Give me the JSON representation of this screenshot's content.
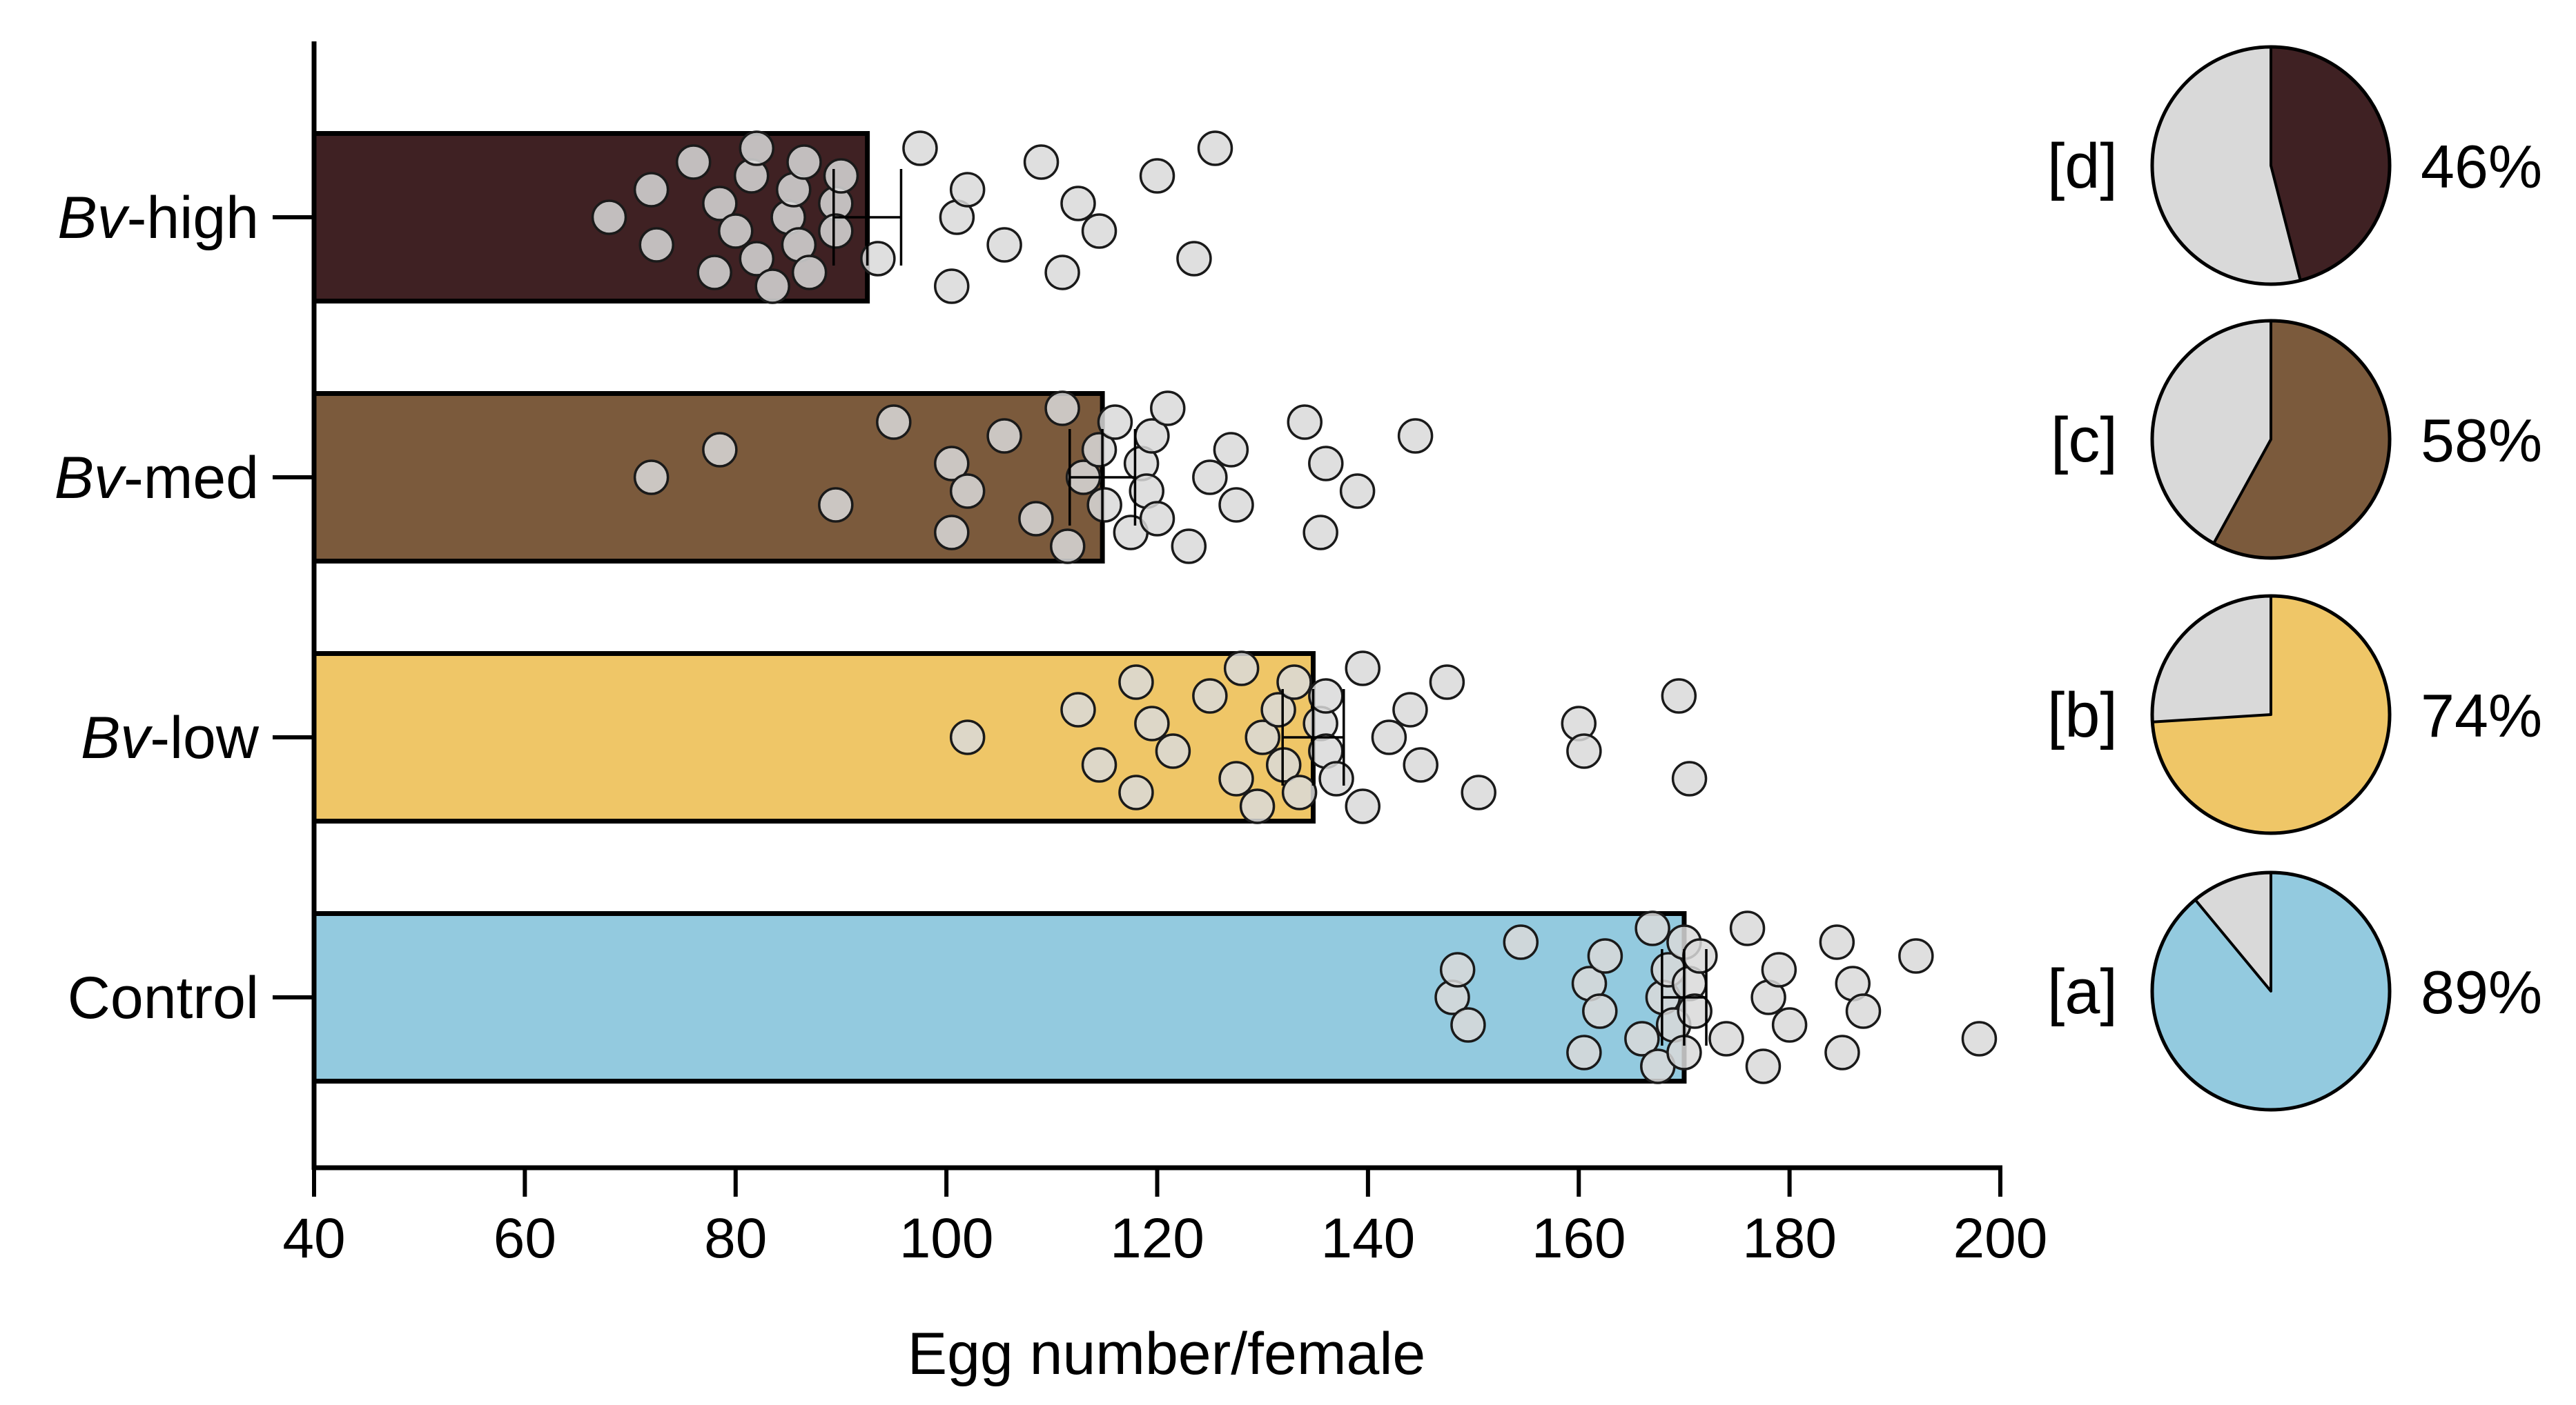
{
  "chart_data": {
    "type": "bar",
    "orientation": "horizontal",
    "xlabel": "Egg number/female",
    "xlim": [
      40,
      200
    ],
    "xticks": [
      40,
      60,
      80,
      100,
      120,
      140,
      160,
      180,
      200
    ],
    "categories": [
      {
        "prefix": "Bv",
        "suffix": "-high",
        "italic_prefix": true
      },
      {
        "prefix": "Bv",
        "suffix": "-med",
        "italic_prefix": true
      },
      {
        "prefix": "Bv",
        "suffix": "-low",
        "italic_prefix": true
      },
      {
        "prefix": "",
        "suffix": "Control",
        "italic_prefix": false
      }
    ],
    "bars": [
      {
        "value": 92.5,
        "sem": 3.2,
        "color": "#3f2123",
        "points": [
          68,
          72,
          72.5,
          76,
          78,
          78.5,
          80,
          81.5,
          82,
          82,
          83.5,
          85,
          85.5,
          86,
          86.5,
          87,
          89.5,
          89.5,
          90,
          93.5,
          97.5,
          100.5,
          101,
          102,
          105.5,
          109,
          111,
          112.5,
          114.5,
          120,
          123.5,
          125.5
        ]
      },
      {
        "value": 114.8,
        "sem": 3.1,
        "color": "#7b5a3c",
        "points": [
          72,
          78.5,
          89.5,
          95,
          100.5,
          100.5,
          102,
          105.5,
          108.5,
          111,
          111.5,
          113,
          114.5,
          115,
          116,
          117.5,
          118.5,
          119,
          119.5,
          120,
          121,
          123,
          125,
          127,
          127.5,
          134,
          135.5,
          136,
          139,
          144.5
        ]
      },
      {
        "value": 134.8,
        "sem": 2.9,
        "color": "#efc667",
        "points": [
          102,
          112.5,
          114.5,
          118,
          118,
          119.5,
          121.5,
          125,
          127.5,
          128,
          129.5,
          130,
          131.5,
          132,
          133,
          133.5,
          135.5,
          136,
          136,
          137,
          139.5,
          139.5,
          142,
          144,
          145,
          147.5,
          150.5,
          160,
          160.5,
          169.5,
          170.5
        ]
      },
      {
        "value": 170.0,
        "sem": 2.1,
        "color": "#93cadf",
        "points": [
          148,
          148.5,
          149.5,
          154.5,
          160.5,
          161,
          162,
          162.5,
          166,
          167,
          167.5,
          168,
          168.5,
          169,
          170,
          170,
          170.5,
          171,
          171.5,
          174,
          176,
          177.5,
          178,
          179,
          180,
          184.5,
          185,
          186,
          187,
          192,
          198
        ]
      }
    ],
    "pies": [
      {
        "letter": "[d]",
        "percent": 46,
        "label": "46%",
        "color": "#3f2123"
      },
      {
        "letter": "[c]",
        "percent": 58,
        "label": "58%",
        "color": "#7b5a3c"
      },
      {
        "letter": "[b]",
        "percent": 74,
        "label": "74%",
        "color": "#efc667"
      },
      {
        "letter": "[a]",
        "percent": 89,
        "label": "89%",
        "color": "#93cadf"
      }
    ],
    "pie_rest_color": "#d9d9d9",
    "point_fill": "#d9d9d9",
    "grid": false
  }
}
